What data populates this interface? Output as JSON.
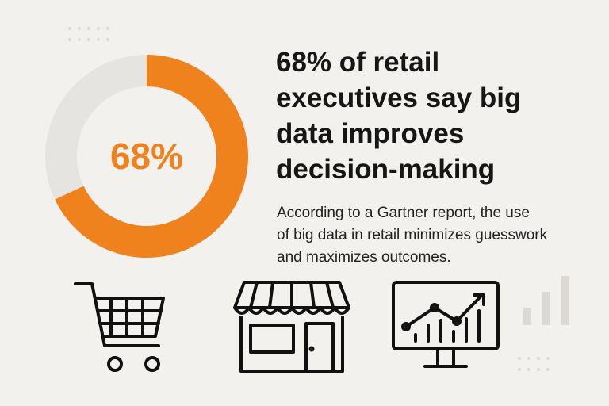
{
  "chart_data": {
    "type": "donut",
    "values": [
      68,
      32
    ],
    "value_labels": [
      "68%",
      null
    ],
    "colors": [
      "#f0821e",
      "#e6e4e1"
    ],
    "title_lines": [
      "68% of retail",
      "executives say big",
      "data improves",
      "decision-making"
    ],
    "subtitle_lines": [
      "According to a Gartner report, the use",
      "of big data in retail minimizes guesswork",
      "and maximizes outcomes."
    ]
  }
}
